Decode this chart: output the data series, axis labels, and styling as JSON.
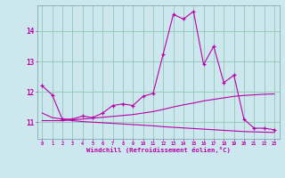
{
  "xlabel": "Windchill (Refroidissement éolien,°C)",
  "bg_color": "#cce8ee",
  "grid_color": "#99ccbb",
  "line_color": "#bb00aa",
  "x_ticks": [
    0,
    1,
    2,
    3,
    4,
    5,
    6,
    7,
    8,
    9,
    10,
    11,
    12,
    13,
    14,
    15,
    16,
    17,
    18,
    19,
    20,
    21,
    22,
    23
  ],
  "y_ticks": [
    11,
    12,
    13,
    14
  ],
  "ylim": [
    10.45,
    14.85
  ],
  "xlim": [
    -0.5,
    23.5
  ],
  "line1_x": [
    0,
    1,
    2,
    3,
    4,
    5,
    6,
    7,
    8,
    9,
    10,
    11,
    12,
    13,
    14,
    15,
    16,
    17,
    18,
    19,
    20,
    21,
    22,
    23
  ],
  "line1_y": [
    12.2,
    11.9,
    11.1,
    11.1,
    11.2,
    11.15,
    11.3,
    11.55,
    11.6,
    11.55,
    11.85,
    11.95,
    13.25,
    14.55,
    14.4,
    14.65,
    12.9,
    13.5,
    12.3,
    12.55,
    11.1,
    10.8,
    10.8,
    10.75
  ],
  "line2_x": [
    0,
    1,
    2,
    3,
    4,
    5,
    6,
    7,
    8,
    9,
    10,
    11,
    12,
    13,
    14,
    15,
    16,
    17,
    18,
    19,
    20,
    21,
    22,
    23
  ],
  "line2_y": [
    11.05,
    11.05,
    11.05,
    11.08,
    11.1,
    11.13,
    11.16,
    11.19,
    11.22,
    11.25,
    11.3,
    11.35,
    11.42,
    11.5,
    11.57,
    11.63,
    11.7,
    11.75,
    11.8,
    11.85,
    11.88,
    11.9,
    11.92,
    11.93
  ],
  "line3_x": [
    0,
    1,
    2,
    3,
    4,
    5,
    6,
    7,
    8,
    9,
    10,
    11,
    12,
    13,
    14,
    15,
    16,
    17,
    18,
    19,
    20,
    21,
    22,
    23
  ],
  "line3_y": [
    11.3,
    11.15,
    11.1,
    11.05,
    11.02,
    11.0,
    10.98,
    10.96,
    10.94,
    10.92,
    10.9,
    10.88,
    10.85,
    10.83,
    10.81,
    10.79,
    10.77,
    10.75,
    10.73,
    10.71,
    10.69,
    10.68,
    10.67,
    10.66
  ]
}
